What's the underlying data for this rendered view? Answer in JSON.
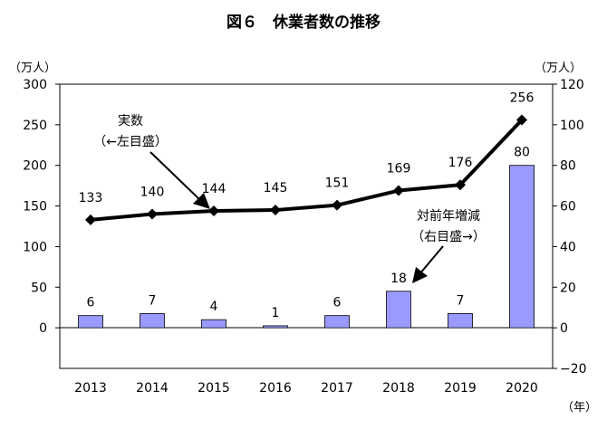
{
  "chart_data": {
    "type": "bar+line",
    "title": "図６　休業者数の推移",
    "categories": [
      "2013",
      "2014",
      "2015",
      "2016",
      "2017",
      "2018",
      "2019",
      "2020"
    ],
    "xlabel_unit": "（年）",
    "y_left": {
      "unit": "（万人）",
      "range": [
        -50,
        300
      ],
      "ticks": [
        "300",
        "250",
        "200",
        "150",
        "100",
        "50",
        "0"
      ]
    },
    "y_right": {
      "unit": "（万人）",
      "range": [
        -20,
        120
      ],
      "ticks": [
        "120",
        "100",
        "80",
        "60",
        "40",
        "20",
        "0",
        "−20"
      ]
    },
    "series": [
      {
        "kind": "line",
        "axis": "left",
        "values": [
          133,
          140,
          144,
          145,
          151,
          169,
          176,
          256
        ]
      },
      {
        "kind": "bar",
        "axis": "right",
        "values": [
          6,
          7,
          4,
          1,
          6,
          18,
          7,
          80
        ]
      }
    ],
    "annotations": {
      "line_label": [
        "実数",
        "（←左目盛）"
      ],
      "bar_label": [
        "対前年増減",
        "（右目盛→）"
      ]
    },
    "colors": {
      "bar": "#9999ff",
      "line": "#000000"
    }
  }
}
